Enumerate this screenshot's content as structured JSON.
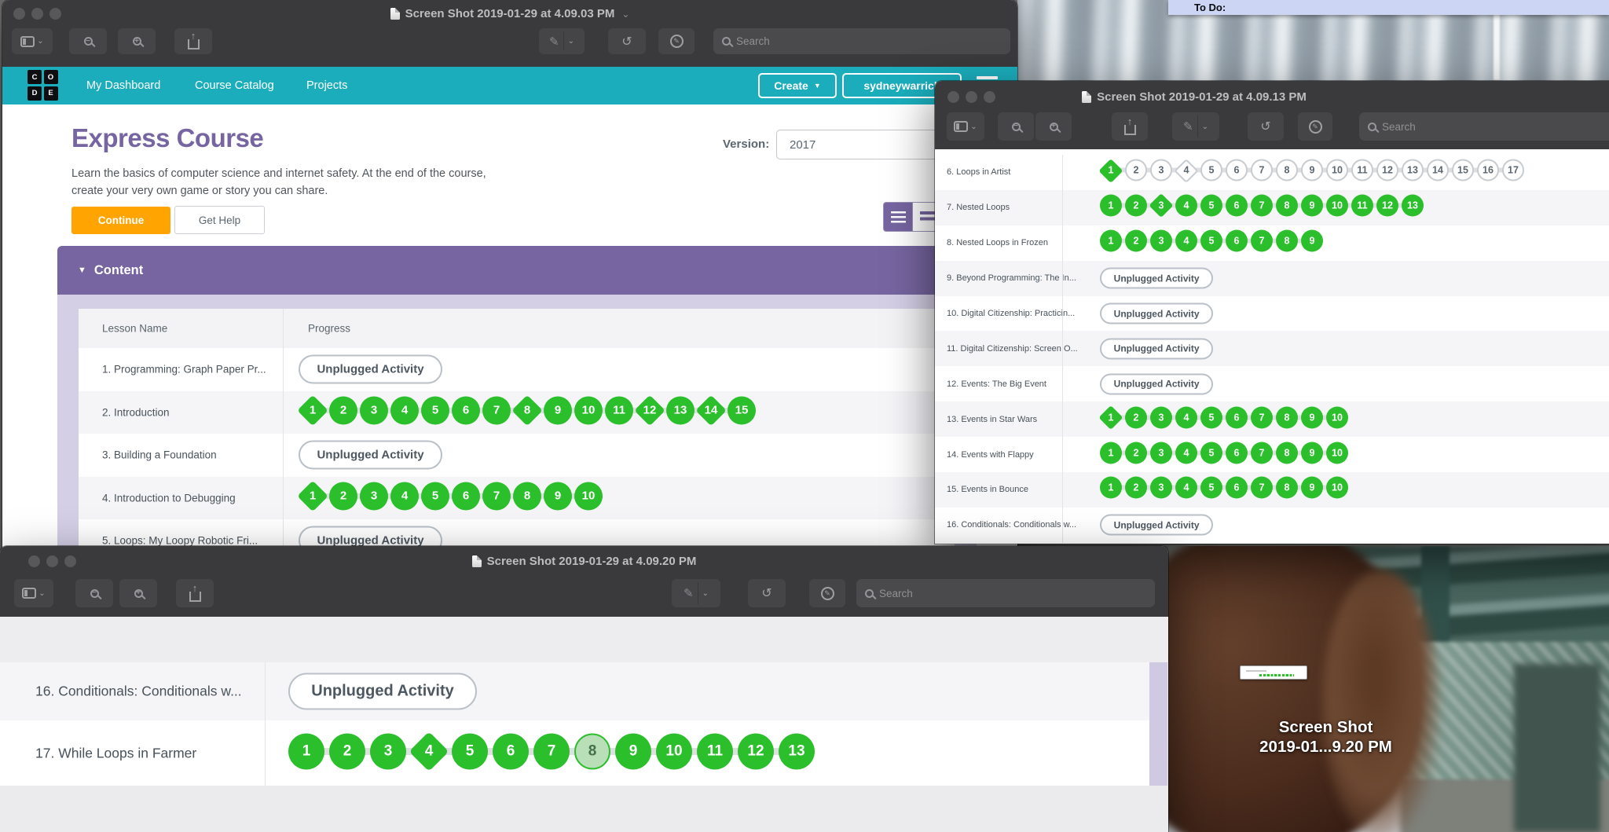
{
  "labels": {
    "search_placeholder": "Search",
    "unplugged_activity": "Unplugged Activity"
  },
  "colors": {
    "teal": "#1badbc",
    "purple": "#7665a0",
    "lavender": "#d5cfe6",
    "green": "#2cbf2c",
    "green_partial": "#b9dfb9",
    "orange": "#ffa400"
  },
  "desktop": {
    "todo_label": "To Do:",
    "icon_label_line1": "Screen Shot",
    "icon_label_line2": "2019-01...9.20 PM"
  },
  "win1": {
    "title": "Screen Shot 2019-01-29 at 4.09.03 PM",
    "page": {
      "logo_letters": [
        "C",
        "O",
        "D",
        "E"
      ],
      "nav_links": [
        "My Dashboard",
        "Course Catalog",
        "Projects"
      ],
      "create_label": "Create",
      "username": "sydneywarrick",
      "title": "Express Course",
      "description": "Learn the basics of computer science and internet safety. At the end of the course, create your very own game or story you can share.",
      "version_label": "Version:",
      "version_value": "2017",
      "continue_label": "Continue",
      "get_help_label": "Get Help",
      "content_label": "Content",
      "columns": [
        "Lesson Name",
        "Progress"
      ]
    },
    "lessons": [
      {
        "name": "1. Programming: Graph Paper Pr...",
        "unplugged": true,
        "shaded": false
      },
      {
        "name": "2. Introduction",
        "bubbles": {
          "count": 15,
          "diamonds": [
            1,
            8,
            12,
            14
          ],
          "filled": "all",
          "partial": []
        },
        "shaded": true
      },
      {
        "name": "3. Building a Foundation",
        "unplugged": true,
        "shaded": false
      },
      {
        "name": "4. Introduction to Debugging",
        "bubbles": {
          "count": 10,
          "diamonds": [
            1
          ],
          "filled": "all",
          "partial": []
        },
        "shaded": true
      },
      {
        "name": "5. Loops: My Loopy Robotic Fri...",
        "unplugged": true,
        "shaded": false
      }
    ]
  },
  "win2": {
    "title": "Screen Shot 2019-01-29 at 4.09.13 PM",
    "lessons": [
      {
        "name": "6. Loops in Artist",
        "bubbles": {
          "count": 17,
          "diamonds": [
            1,
            4
          ],
          "filled": [
            1
          ],
          "partial": []
        },
        "shaded": false
      },
      {
        "name": "7. Nested Loops",
        "bubbles": {
          "count": 13,
          "diamonds": [
            3
          ],
          "filled": "all",
          "partial": []
        },
        "shaded": true
      },
      {
        "name": "8. Nested Loops in Frozen",
        "bubbles": {
          "count": 9,
          "diamonds": [],
          "filled": "all",
          "partial": []
        },
        "shaded": false
      },
      {
        "name": "9. Beyond Programming: The In...",
        "unplugged": true,
        "shaded": true
      },
      {
        "name": "10. Digital Citizenship: Practicin...",
        "unplugged": true,
        "shaded": false
      },
      {
        "name": "11. Digital Citizenship: Screen O...",
        "unplugged": true,
        "shaded": true
      },
      {
        "name": "12. Events: The Big Event",
        "unplugged": true,
        "shaded": false
      },
      {
        "name": "13. Events in Star Wars",
        "bubbles": {
          "count": 10,
          "diamonds": [
            1
          ],
          "filled": "all",
          "partial": []
        },
        "shaded": true
      },
      {
        "name": "14. Events with Flappy",
        "bubbles": {
          "count": 10,
          "diamonds": [],
          "filled": "all",
          "partial": []
        },
        "shaded": false
      },
      {
        "name": "15. Events in Bounce",
        "bubbles": {
          "count": 10,
          "diamonds": [],
          "filled": "all",
          "partial": []
        },
        "shaded": true
      },
      {
        "name": "16. Conditionals: Conditionals w...",
        "unplugged": true,
        "shaded": false
      }
    ]
  },
  "win3": {
    "title": "Screen Shot 2019-01-29 at 4.09.20 PM",
    "lessons": [
      {
        "name": "16. Conditionals: Conditionals w...",
        "unplugged": true,
        "shaded": true
      },
      {
        "name": "17. While Loops in Farmer",
        "bubbles": {
          "count": 13,
          "diamonds": [
            4
          ],
          "filled": "all",
          "partial": [
            8
          ]
        },
        "shaded": false
      }
    ]
  }
}
